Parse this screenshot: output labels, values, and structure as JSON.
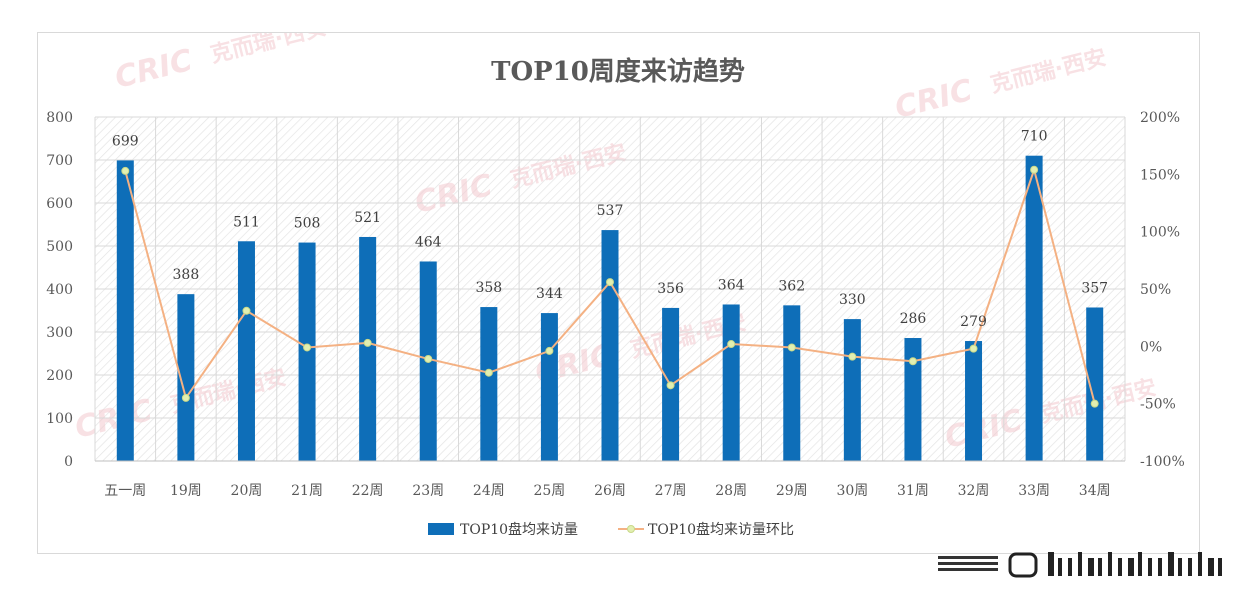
{
  "chart_data": {
    "type": "bar",
    "title": "TOP10周度来访趋势",
    "categories": [
      "五一周",
      "19周",
      "20周",
      "21周",
      "22周",
      "23周",
      "24周",
      "25周",
      "26周",
      "27周",
      "28周",
      "29周",
      "30周",
      "31周",
      "32周",
      "33周",
      "34周"
    ],
    "series": [
      {
        "name": "TOP10盘均来访量",
        "type": "bar",
        "axis": "left",
        "color": "#0e6eb8",
        "values": [
          699,
          388,
          511,
          508,
          521,
          464,
          358,
          344,
          537,
          356,
          364,
          362,
          330,
          286,
          279,
          710,
          357
        ]
      },
      {
        "name": "TOP10盘均来访量环比",
        "type": "line",
        "axis": "right",
        "color": "#f4b183",
        "marker_color": "#e2efb1",
        "values": [
          153,
          -45,
          31,
          -1,
          3,
          -11,
          -23,
          -4,
          56,
          -34,
          2,
          -1,
          -9,
          -13,
          -2,
          154,
          -50
        ]
      }
    ],
    "y_left": {
      "min": 0,
      "max": 800,
      "ticks": [
        0,
        100,
        200,
        300,
        400,
        500,
        600,
        700,
        800
      ]
    },
    "y_right": {
      "min": -100,
      "max": 200,
      "unit": "%",
      "ticks": [
        -100,
        -50,
        0,
        50,
        100,
        150,
        200
      ]
    },
    "grid": true,
    "legend": "bottom"
  },
  "watermark": {
    "logo": "CRIC",
    "text": "克而瑞·西安"
  }
}
